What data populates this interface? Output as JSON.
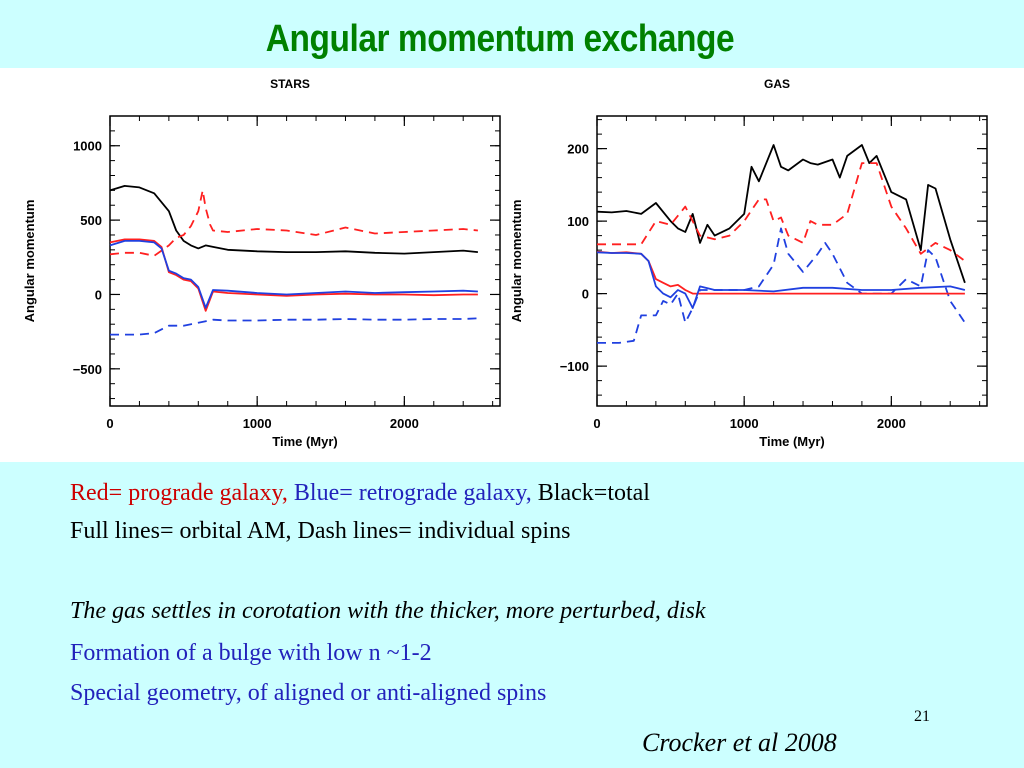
{
  "slide": {
    "title": "Angular momentum exchange",
    "slide_number": "21",
    "citation": "Crocker et al 2008"
  },
  "legend": {
    "red_label": "Red= prograde galaxy,",
    "blue_label": "Blue= retrograde galaxy,",
    "black_label": "Black=total",
    "line_styles": "Full lines= orbital AM, Dash lines= individual spins"
  },
  "notes": [
    {
      "text": "The gas settles in corotation with the thicker, more perturbed, disk",
      "style": "italic",
      "color": "#000000"
    },
    {
      "text": "Formation of a bulge with low n ~1-2",
      "style": "normal",
      "color": "#2222bb"
    },
    {
      "text": "Special geometry, of aligned or anti-aligned spins",
      "style": "normal",
      "color": "#2222bb"
    }
  ],
  "colors": {
    "red": "#ff2020",
    "blue": "#2040e0",
    "black": "#000000",
    "title_green": "#008000",
    "background": "#ccffff"
  },
  "chart_data": [
    {
      "type": "line",
      "title": "STARS",
      "xlabel": "Time (Myr)",
      "ylabel": "Angular momentum",
      "xlim": [
        0,
        2650
      ],
      "ylim": [
        -750,
        1200
      ],
      "xticks": [
        0,
        1000,
        2000
      ],
      "yticks": [
        -500,
        0,
        500,
        1000
      ],
      "series": [
        {
          "color": "black",
          "style": "solid",
          "x": [
            0,
            100,
            200,
            300,
            400,
            450,
            500,
            550,
            600,
            650,
            700,
            800,
            1000,
            1200,
            1400,
            1600,
            1800,
            2000,
            2200,
            2400,
            2500
          ],
          "y": [
            700,
            730,
            720,
            680,
            560,
            430,
            360,
            330,
            310,
            330,
            320,
            300,
            290,
            285,
            285,
            290,
            280,
            275,
            285,
            295,
            285
          ]
        },
        {
          "color": "red",
          "style": "dashed",
          "x": [
            0,
            100,
            200,
            300,
            400,
            450,
            500,
            550,
            600,
            630,
            650,
            680,
            700,
            800,
            1000,
            1200,
            1400,
            1600,
            1800,
            2000,
            2200,
            2400,
            2500
          ],
          "y": [
            270,
            280,
            280,
            260,
            330,
            380,
            400,
            460,
            560,
            700,
            580,
            470,
            430,
            420,
            440,
            430,
            400,
            450,
            410,
            420,
            430,
            440,
            430
          ]
        },
        {
          "color": "blue",
          "style": "dashed",
          "x": [
            0,
            100,
            200,
            300,
            400,
            500,
            550,
            600,
            650,
            700,
            800,
            1000,
            1200,
            1400,
            1600,
            1800,
            2000,
            2200,
            2400,
            2500
          ],
          "y": [
            -270,
            -270,
            -270,
            -260,
            -210,
            -210,
            -200,
            -190,
            -180,
            -170,
            -175,
            -175,
            -170,
            -170,
            -165,
            -170,
            -170,
            -165,
            -165,
            -160
          ]
        },
        {
          "color": "red",
          "style": "solid",
          "x": [
            0,
            100,
            200,
            300,
            350,
            400,
            450,
            500,
            550,
            600,
            650,
            700,
            800,
            1000,
            1200,
            1400,
            1600,
            1800,
            2000,
            2200,
            2400,
            2500
          ],
          "y": [
            350,
            370,
            370,
            360,
            320,
            150,
            130,
            100,
            90,
            40,
            -110,
            20,
            10,
            0,
            -10,
            0,
            5,
            0,
            0,
            -5,
            0,
            0
          ]
        },
        {
          "color": "blue",
          "style": "solid",
          "x": [
            0,
            100,
            200,
            300,
            350,
            400,
            450,
            500,
            550,
            600,
            650,
            700,
            800,
            1000,
            1200,
            1400,
            1600,
            1800,
            2000,
            2200,
            2400,
            2500
          ],
          "y": [
            330,
            360,
            360,
            350,
            310,
            160,
            140,
            110,
            100,
            50,
            -90,
            30,
            25,
            10,
            0,
            10,
            20,
            10,
            15,
            20,
            25,
            20
          ]
        }
      ]
    },
    {
      "type": "line",
      "title": "GAS",
      "xlabel": "Time (Myr)",
      "ylabel": "Angular momentum",
      "xlim": [
        0,
        2650
      ],
      "ylim": [
        -155,
        245
      ],
      "xticks": [
        0,
        1000,
        2000
      ],
      "yticks": [
        -100,
        0,
        100,
        200
      ],
      "series": [
        {
          "color": "black",
          "style": "solid",
          "x": [
            0,
            100,
            200,
            300,
            400,
            500,
            550,
            600,
            650,
            700,
            750,
            800,
            900,
            1000,
            1050,
            1100,
            1200,
            1250,
            1300,
            1400,
            1450,
            1500,
            1600,
            1650,
            1700,
            1800,
            1850,
            1900,
            2000,
            2100,
            2200,
            2250,
            2300,
            2400,
            2500
          ],
          "y": [
            113,
            112,
            114,
            110,
            125,
            100,
            90,
            85,
            110,
            70,
            95,
            80,
            90,
            110,
            175,
            155,
            205,
            175,
            170,
            185,
            180,
            178,
            185,
            160,
            190,
            205,
            180,
            190,
            140,
            130,
            60,
            150,
            145,
            75,
            15
          ]
        },
        {
          "color": "red",
          "style": "dashed",
          "x": [
            0,
            200,
            300,
            400,
            500,
            600,
            700,
            800,
            900,
            1000,
            1100,
            1150,
            1200,
            1250,
            1300,
            1400,
            1450,
            1500,
            1600,
            1700,
            1800,
            1900,
            2000,
            2100,
            2200,
            2300,
            2400,
            2500
          ],
          "y": [
            68,
            68,
            68,
            100,
            95,
            120,
            80,
            75,
            80,
            100,
            130,
            130,
            100,
            105,
            80,
            70,
            100,
            95,
            95,
            110,
            180,
            180,
            120,
            90,
            55,
            70,
            60,
            45
          ]
        },
        {
          "color": "blue",
          "style": "dashed",
          "x": [
            0,
            150,
            250,
            300,
            400,
            450,
            500,
            550,
            600,
            650,
            700,
            800,
            1000,
            1100,
            1200,
            1250,
            1300,
            1400,
            1500,
            1550,
            1600,
            1700,
            1800,
            1900,
            2000,
            2100,
            2200,
            2250,
            2300,
            2400,
            2500
          ],
          "y": [
            -68,
            -68,
            -65,
            -30,
            -30,
            -10,
            -15,
            0,
            -40,
            -20,
            5,
            5,
            5,
            10,
            40,
            90,
            55,
            30,
            55,
            70,
            55,
            15,
            0,
            0,
            0,
            20,
            10,
            60,
            50,
            -10,
            -40
          ]
        },
        {
          "color": "red",
          "style": "solid",
          "x": [
            0,
            100,
            200,
            300,
            350,
            400,
            450,
            500,
            550,
            600,
            650,
            700,
            800,
            1000,
            1200,
            1400,
            1600,
            1800,
            2000,
            2200,
            2400,
            2500
          ],
          "y": [
            58,
            56,
            57,
            55,
            45,
            20,
            15,
            10,
            12,
            5,
            0,
            0,
            0,
            0,
            0,
            0,
            0,
            0,
            0,
            0,
            0,
            0
          ]
        },
        {
          "color": "blue",
          "style": "solid",
          "x": [
            0,
            100,
            200,
            300,
            350,
            400,
            450,
            500,
            550,
            600,
            650,
            700,
            800,
            1000,
            1200,
            1400,
            1600,
            1800,
            2000,
            2200,
            2400,
            2500
          ],
          "y": [
            57,
            56,
            56,
            55,
            45,
            10,
            0,
            -5,
            5,
            0,
            -20,
            10,
            5,
            5,
            3,
            8,
            8,
            5,
            5,
            8,
            10,
            5
          ]
        }
      ]
    }
  ]
}
